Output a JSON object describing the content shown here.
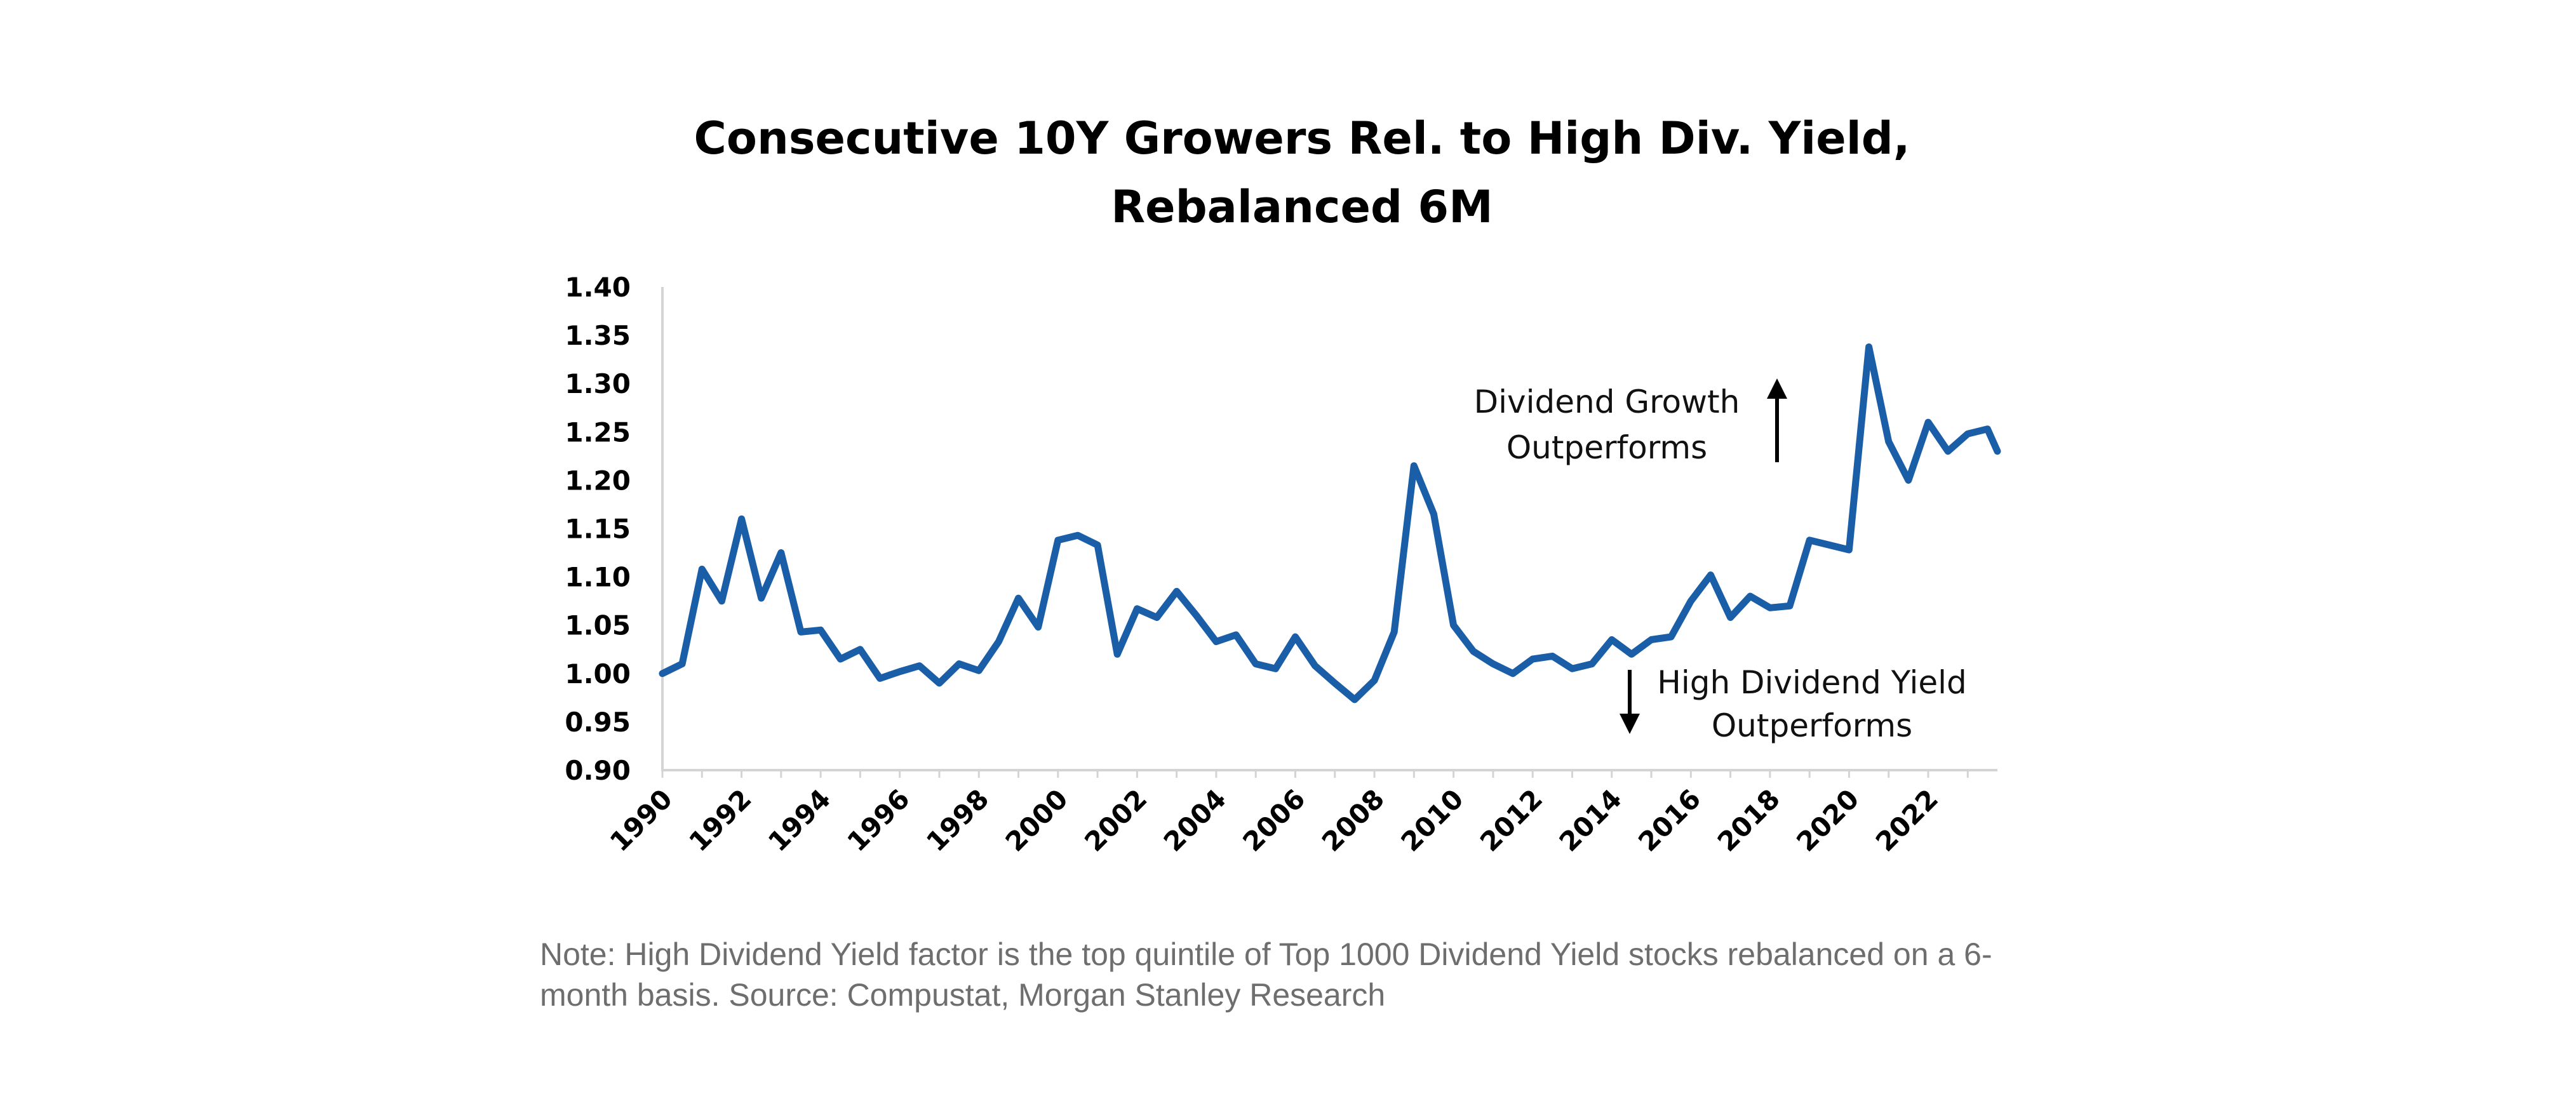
{
  "chart_data": {
    "type": "line",
    "title_lines": [
      "Consecutive 10Y Growers Rel. to High Div. Yield,",
      "Rebalanced 6M"
    ],
    "xlabel": "",
    "ylabel": "",
    "xlim": [
      1990,
      2023.75
    ],
    "ylim": [
      0.9,
      1.4
    ],
    "y_ticks": [
      "1.40",
      "1.35",
      "1.30",
      "1.25",
      "1.20",
      "1.15",
      "1.10",
      "1.05",
      "1.00",
      "0.95",
      "0.90"
    ],
    "x_ticks": [
      "1990",
      "1992",
      "1994",
      "1996",
      "1998",
      "2000",
      "2002",
      "2004",
      "2006",
      "2008",
      "2010",
      "2012",
      "2014",
      "2016",
      "2018",
      "2020",
      "2022"
    ],
    "grid": false,
    "legend": "none",
    "series": [
      {
        "name": "Consecutive 10Y Growers Rel. to High Div. Yield",
        "color": "#1a5ea8",
        "x": [
          1990.0,
          1990.5,
          1991.0,
          1991.5,
          1992.0,
          1992.5,
          1993.0,
          1993.5,
          1994.0,
          1994.5,
          1995.0,
          1995.5,
          1996.0,
          1996.5,
          1997.0,
          1997.5,
          1998.0,
          1998.5,
          1999.0,
          1999.5,
          2000.0,
          2000.5,
          2001.0,
          2001.5,
          2002.0,
          2002.5,
          2003.0,
          2003.5,
          2004.0,
          2004.5,
          2005.0,
          2005.5,
          2006.0,
          2006.5,
          2007.0,
          2007.5,
          2008.0,
          2008.5,
          2009.0,
          2009.5,
          2010.0,
          2010.5,
          2011.0,
          2011.5,
          2012.0,
          2012.5,
          2013.0,
          2013.5,
          2014.0,
          2014.5,
          2015.0,
          2015.5,
          2016.0,
          2016.5,
          2017.0,
          2017.5,
          2018.0,
          2018.5,
          2019.0,
          2019.5,
          2020.0,
          2020.5,
          2021.0,
          2021.5,
          2022.0,
          2022.5,
          2023.0,
          2023.5,
          2023.75
        ],
        "values": [
          1.0,
          1.01,
          1.108,
          1.075,
          1.16,
          1.078,
          1.125,
          1.043,
          1.045,
          1.015,
          1.025,
          0.995,
          1.002,
          1.008,
          0.99,
          1.01,
          1.003,
          1.033,
          1.078,
          1.048,
          1.138,
          1.143,
          1.133,
          1.02,
          1.067,
          1.058,
          1.085,
          1.06,
          1.033,
          1.04,
          1.01,
          1.005,
          1.038,
          1.008,
          0.99,
          0.973,
          0.993,
          1.043,
          1.215,
          1.165,
          1.05,
          1.023,
          1.01,
          1.0,
          1.015,
          1.018,
          1.005,
          1.01,
          1.035,
          1.02,
          1.035,
          1.038,
          1.075,
          1.102,
          1.058,
          1.08,
          1.068,
          1.07,
          1.138,
          1.133,
          1.128,
          1.338,
          1.24,
          1.2,
          1.26,
          1.23,
          1.248,
          1.253,
          1.23
        ]
      }
    ],
    "annotations": [
      {
        "lines": [
          "Dividend Growth",
          "Outperforms"
        ],
        "arrow": "up"
      },
      {
        "lines": [
          "High Dividend Yield",
          "Outperforms"
        ],
        "arrow": "down"
      }
    ]
  },
  "note": {
    "line1": "Note: High Dividend Yield factor is the top quintile of Top 1000 Dividend Yield stocks rebalanced on a 6-",
    "line2": "month basis. Source: Compustat, Morgan Stanley Research"
  }
}
